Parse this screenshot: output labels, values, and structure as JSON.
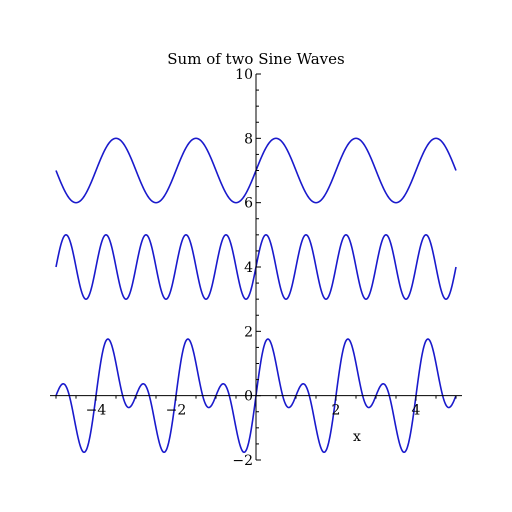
{
  "chart_data": {
    "type": "line",
    "title": "Sum of two Sine Waves",
    "xlabel": "x",
    "ylabel": "",
    "xlim": [
      -5,
      5
    ],
    "ylim": [
      -2,
      10
    ],
    "grid": false,
    "legend": "none",
    "x_ticks": [
      -4,
      -2,
      0,
      2,
      4
    ],
    "y_ticks": [
      -2,
      0,
      2,
      4,
      6,
      8,
      10
    ],
    "line_color": "#1a1acc",
    "series": [
      {
        "formula": "7 + sin(pi*x)",
        "offset": 7,
        "terms": [
          {
            "amp": 1,
            "freq": 3.14159
          }
        ]
      },
      {
        "formula": "4 + sin(2*pi*x)",
        "offset": 4,
        "terms": [
          {
            "amp": 1,
            "freq": 6.28318
          }
        ]
      },
      {
        "formula": "sin(pi*x) + sin(2*pi*x)",
        "offset": 0,
        "terms": [
          {
            "amp": 1,
            "freq": 3.14159
          },
          {
            "amp": 1,
            "freq": 6.28318
          }
        ]
      }
    ]
  }
}
